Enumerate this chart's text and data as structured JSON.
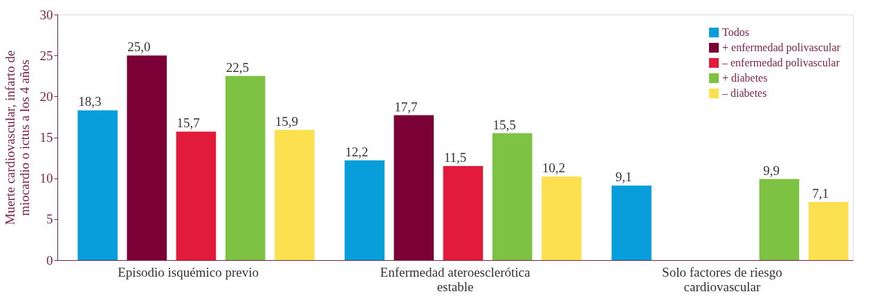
{
  "chart_data": {
    "type": "bar",
    "ylabel": "Muerte cardiovascular, infarto de miocardio o ictus a los 4 años",
    "categories": [
      "Episodio isquémico previo",
      "Enfermedad ateroesclerótica estable",
      "Solo factores de riesgo cardiovascular"
    ],
    "series": [
      {
        "name": "Todos",
        "color": "#089ddb",
        "values": [
          18.3,
          12.2,
          9.1
        ],
        "value_labels": [
          "18,3",
          "12,2",
          "9,1"
        ]
      },
      {
        "name": "+ enfermedad polivascular",
        "color": "#7a0036",
        "values": [
          25.0,
          17.7,
          null
        ],
        "value_labels": [
          "25,0",
          "17,7",
          null
        ]
      },
      {
        "name": "– enfermedad polivascular",
        "color": "#e31b3a",
        "values": [
          15.7,
          11.5,
          null
        ],
        "value_labels": [
          "15,7",
          "11,5",
          null
        ]
      },
      {
        "name": "+ diabetes",
        "color": "#7dc242",
        "values": [
          22.5,
          15.5,
          9.9
        ],
        "value_labels": [
          "22,5",
          "15,5",
          "9,9"
        ]
      },
      {
        "name": "– diabetes",
        "color": "#fde04f",
        "values": [
          15.9,
          10.2,
          7.1
        ],
        "value_labels": [
          "15,9",
          "10,2",
          "7,1"
        ]
      }
    ],
    "ylim": [
      0,
      30
    ],
    "yticks": [
      0,
      5,
      10,
      15,
      20,
      25,
      30
    ],
    "grid": false,
    "legend": "top right"
  }
}
